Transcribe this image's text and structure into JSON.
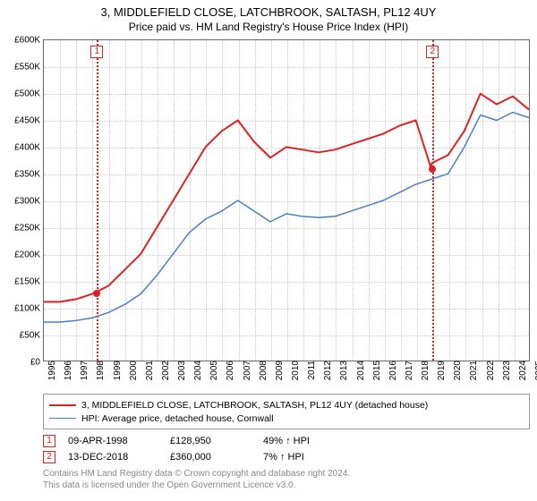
{
  "title": "3, MIDDLEFIELD CLOSE, LATCHBROOK, SALTASH, PL12 4UY",
  "subtitle": "Price paid vs. HM Land Registry's House Price Index (HPI)",
  "chart": {
    "type": "line",
    "background_color": "#ffffff",
    "grid_color": "#cccccc",
    "axis_color": "#666666",
    "xlim": [
      1995,
      2025
    ],
    "ylim": [
      0,
      600000
    ],
    "yticks": [
      0,
      50000,
      100000,
      150000,
      200000,
      250000,
      300000,
      350000,
      400000,
      450000,
      500000,
      550000,
      600000
    ],
    "ytick_labels": [
      "£0",
      "£50K",
      "£100K",
      "£150K",
      "£200K",
      "£250K",
      "£300K",
      "£350K",
      "£400K",
      "£450K",
      "£500K",
      "£550K",
      "£600K"
    ],
    "xticks": [
      1995,
      1996,
      1997,
      1998,
      1999,
      2000,
      2001,
      2002,
      2003,
      2004,
      2005,
      2006,
      2007,
      2008,
      2009,
      2010,
      2011,
      2012,
      2013,
      2014,
      2015,
      2016,
      2017,
      2018,
      2019,
      2020,
      2021,
      2022,
      2023,
      2024,
      2025
    ],
    "label_fontsize": 10,
    "series": [
      {
        "name": "price_paid",
        "label": "3, MIDDLEFIELD CLOSE, LATCHBROOK, SALTASH, PL12 4UY (detached house)",
        "color": "#e02020",
        "line_width": 2,
        "x": [
          1995,
          1996,
          1997,
          1998,
          1998.27,
          1999,
          2000,
          2001,
          2002,
          2003,
          2004,
          2005,
          2006,
          2007,
          2008,
          2009,
          2010,
          2011,
          2012,
          2013,
          2014,
          2015,
          2016,
          2017,
          2018,
          2018.95,
          2019,
          2020,
          2021,
          2022,
          2023,
          2024,
          2025
        ],
        "y": [
          110000,
          110000,
          115000,
          125000,
          128950,
          140000,
          170000,
          200000,
          250000,
          300000,
          350000,
          400000,
          430000,
          450000,
          410000,
          380000,
          400000,
          395000,
          390000,
          395000,
          405000,
          415000,
          425000,
          440000,
          450000,
          360000,
          370000,
          385000,
          430000,
          500000,
          480000,
          495000,
          470000
        ]
      },
      {
        "name": "hpi",
        "label": "HPI: Average price, detached house, Cornwall",
        "color": "#4a7fc4",
        "line_width": 1.5,
        "x": [
          1995,
          1996,
          1997,
          1998,
          1999,
          2000,
          2001,
          2002,
          2003,
          2004,
          2005,
          2006,
          2007,
          2008,
          2009,
          2010,
          2011,
          2012,
          2013,
          2014,
          2015,
          2016,
          2017,
          2018,
          2019,
          2020,
          2021,
          2022,
          2023,
          2024,
          2025
        ],
        "y": [
          72000,
          72000,
          75000,
          80000,
          90000,
          105000,
          125000,
          160000,
          200000,
          240000,
          265000,
          280000,
          300000,
          280000,
          260000,
          275000,
          270000,
          268000,
          270000,
          280000,
          290000,
          300000,
          315000,
          330000,
          340000,
          350000,
          400000,
          460000,
          450000,
          465000,
          455000
        ]
      }
    ],
    "markers": [
      {
        "id": "1",
        "x": 1998.27,
        "y": 128950
      },
      {
        "id": "2",
        "x": 2018.95,
        "y": 360000
      }
    ]
  },
  "legend": {
    "items": [
      {
        "color": "#e02020",
        "label": "3, MIDDLEFIELD CLOSE, LATCHBROOK, SALTASH, PL12 4UY (detached house)"
      },
      {
        "color": "#4a7fc4",
        "label": "HPI: Average price, detached house, Cornwall"
      }
    ]
  },
  "events": [
    {
      "id": "1",
      "date": "09-APR-1998",
      "price": "£128,950",
      "pct": "49%",
      "arrow": "↑",
      "suffix": "HPI"
    },
    {
      "id": "2",
      "date": "13-DEC-2018",
      "price": "£360,000",
      "pct": "7%",
      "arrow": "↑",
      "suffix": "HPI"
    }
  ],
  "footer": {
    "line1": "Contains HM Land Registry data © Crown copyright and database right 2024.",
    "line2": "This data is licensed under the Open Government Licence v3.0."
  }
}
